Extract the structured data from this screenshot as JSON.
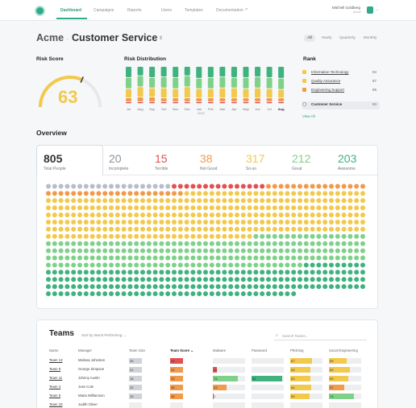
{
  "nav": {
    "items": [
      "Dashboard",
      "Campaigns",
      "Reports",
      "Users",
      "Templates",
      "Documentation"
    ],
    "user_name": "Mitchell Goldberg",
    "user_org": "Acme"
  },
  "header": {
    "company": "Acme",
    "separator": "·",
    "page": "Customer Service",
    "periods": [
      "All",
      "Yearly",
      "Quarterly",
      "Monthly"
    ],
    "active_period": "All"
  },
  "risk_score": {
    "title": "Risk Score",
    "value": "63",
    "level": 0.63
  },
  "risk_distribution": {
    "title": "Risk Distribution",
    "months": [
      "Jul",
      "Aug",
      "Sep",
      "Oct",
      "Nov",
      "Dec",
      "Jan",
      "Feb",
      "Mar",
      "Apr",
      "May",
      "Jun",
      "Jul",
      "Aug"
    ],
    "year_label": "2015"
  },
  "rank": {
    "title": "Rank",
    "items": [
      {
        "label": "Information Technology",
        "value": "94",
        "color": "#f2c94c"
      },
      {
        "label": "Quality Assurance",
        "value": "87",
        "color": "#f2c94c"
      },
      {
        "label": "Engineering Support",
        "value": "85",
        "color": "#f2994a"
      }
    ],
    "current": {
      "label": "Customer Service",
      "value": "63"
    },
    "view_all": "View All"
  },
  "overview": {
    "title": "Overview",
    "stats": [
      {
        "value": "805",
        "label": "Total People",
        "color": "#333333"
      },
      {
        "value": "20",
        "label": "Incomplete",
        "color": "#8a929c"
      },
      {
        "value": "15",
        "label": "Terrible",
        "color": "#e05252"
      },
      {
        "value": "38",
        "label": "Not Good",
        "color": "#f2994a"
      },
      {
        "value": "317",
        "label": "So-so",
        "color": "#f2c94c"
      },
      {
        "value": "212",
        "label": "Great",
        "color": "#7fd18a"
      },
      {
        "value": "203",
        "label": "Awesome",
        "color": "#3fb27f"
      }
    ]
  },
  "teams": {
    "title": "Teams",
    "sort_label": "Sort by Worst Performing",
    "search_placeholder": "Search Teams...",
    "columns": [
      "Name",
      "Manager",
      "Team Size",
      "Team Score",
      "Malware",
      "Password",
      "Phishing",
      "Social Engineering"
    ],
    "rows": [
      {
        "name": "Team 13",
        "manager": "Melissa Johnston",
        "size": "25",
        "score": "28",
        "malware": "",
        "password": "",
        "phishing": "67",
        "social": "55"
      },
      {
        "name": "Team 8",
        "manager": "George Simpson",
        "size": "31",
        "score": "32",
        "malware": "12",
        "password": "",
        "phishing": "63",
        "social": "65"
      },
      {
        "name": "Team 11",
        "manager": "Johnny Austin",
        "size": "18",
        "score": "33",
        "malware": "78",
        "password": "94",
        "phishing": "63",
        "social": "59"
      },
      {
        "name": "Team 3",
        "manager": "Jose Cole",
        "size": "25",
        "score": "38",
        "malware": "43",
        "password": "",
        "phishing": "64",
        "social": "47"
      },
      {
        "name": "Team 5",
        "manager": "Maria Williamson",
        "size": "15",
        "score": "38",
        "malware": "2",
        "password": "",
        "phishing": "59",
        "social": "78"
      },
      {
        "name": "Team 10",
        "manager": "Judith Oliver",
        "size": "",
        "score": "",
        "malware": "",
        "password": "",
        "phishing": "",
        "social": ""
      }
    ]
  }
}
